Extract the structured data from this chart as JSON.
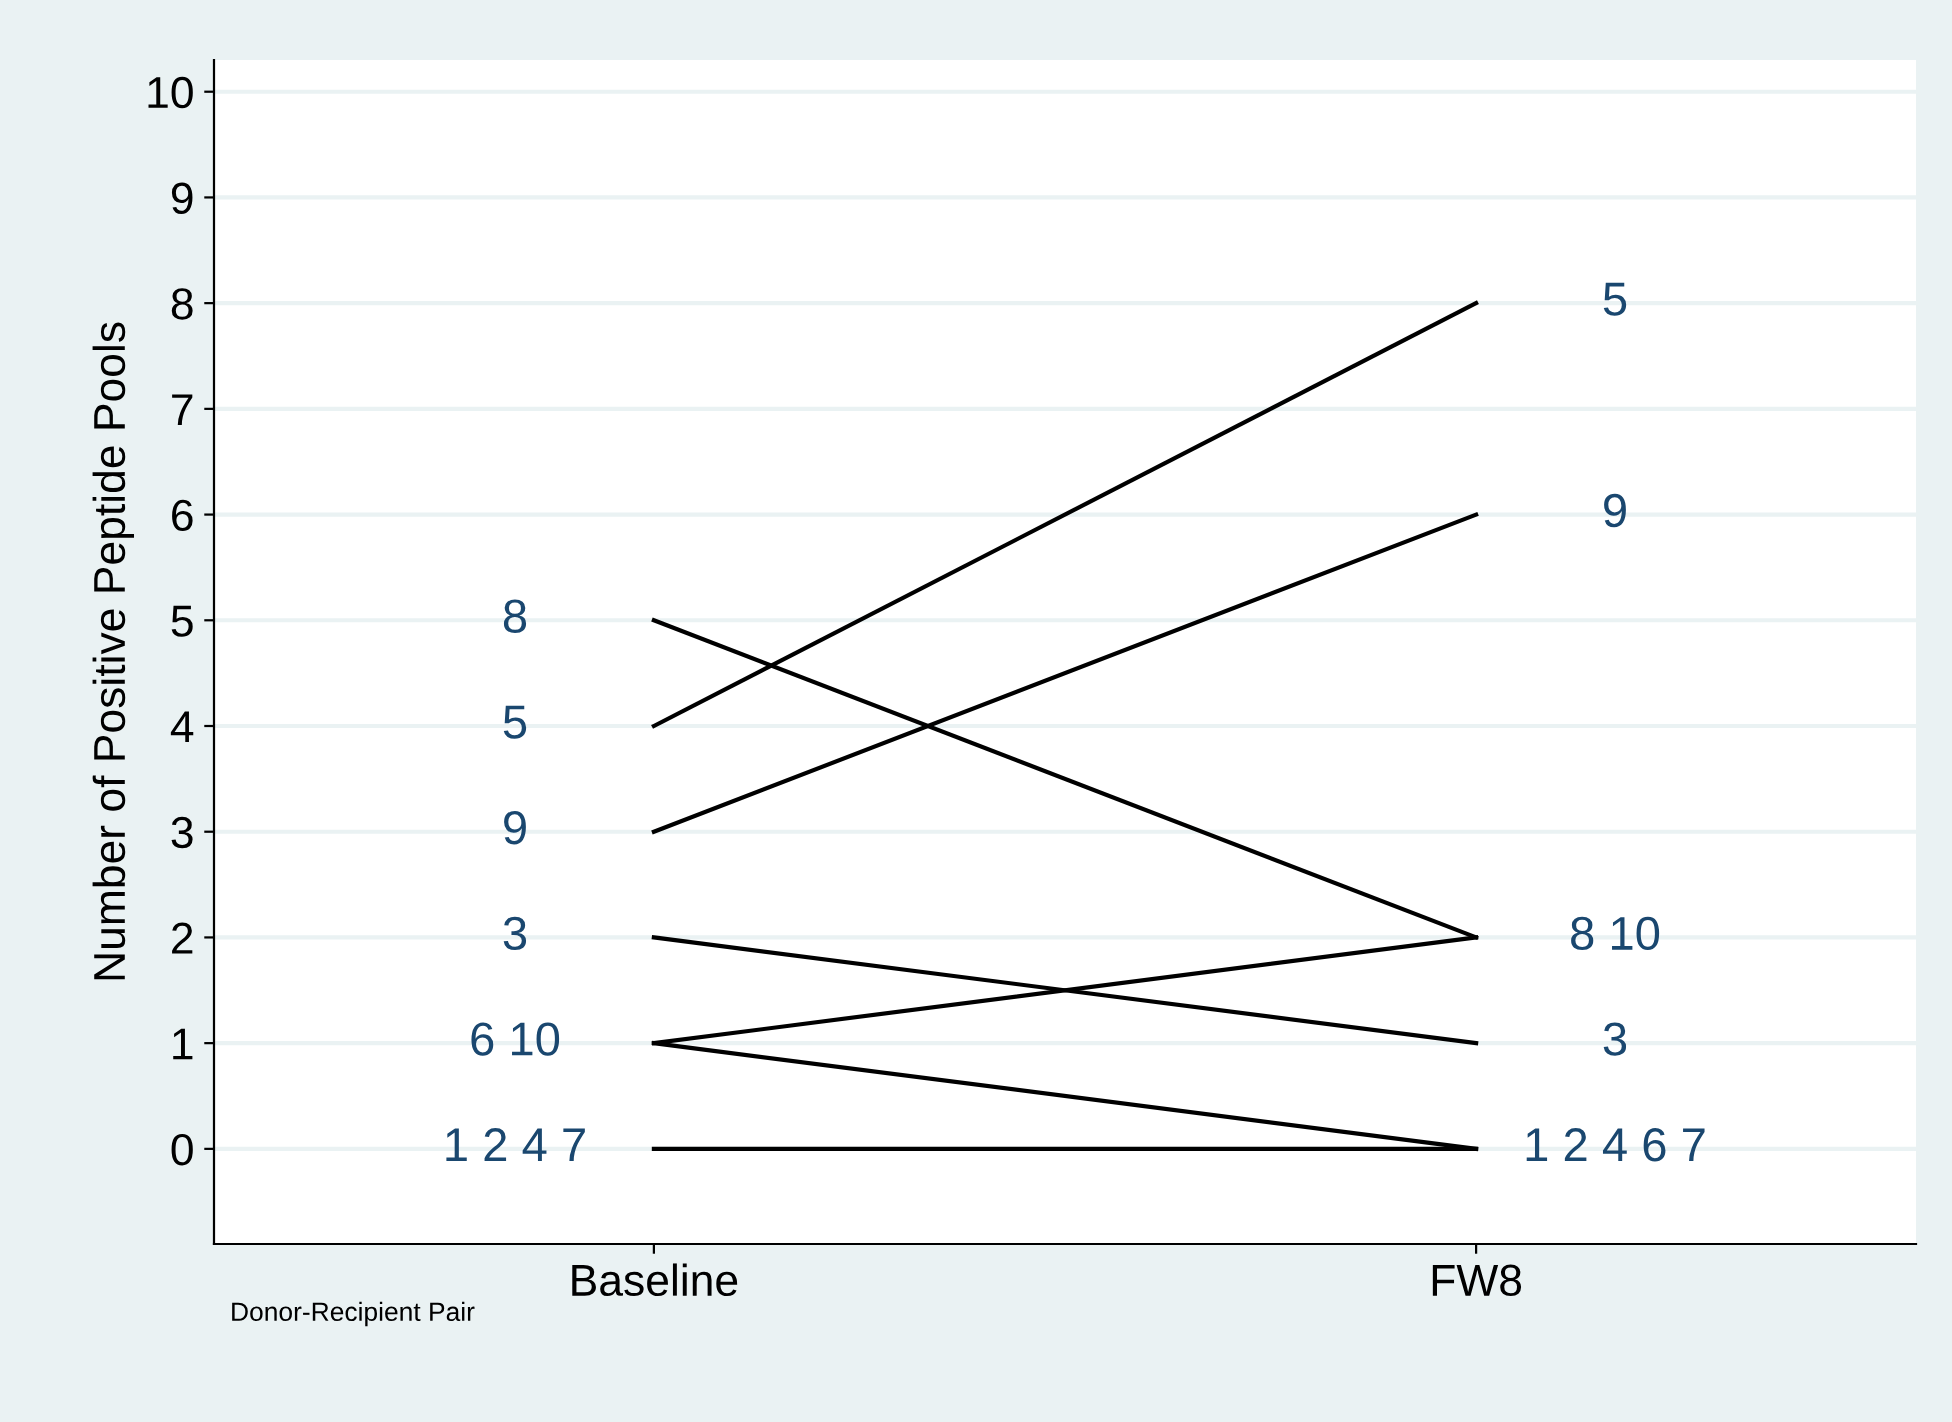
{
  "chart_data": {
    "type": "line",
    "ylabel": "Number of Positive Peptide Pools",
    "categories": [
      "Baseline",
      "FW8"
    ],
    "series": [
      {
        "color": "#000000",
        "values": [
          0,
          0
        ]
      },
      {
        "color": "#000000",
        "values": [
          2,
          1
        ]
      },
      {
        "color": "#000000",
        "values": [
          4,
          8
        ]
      },
      {
        "color": "#000000",
        "values": [
          1,
          0
        ]
      },
      {
        "color": "#000000",
        "values": [
          5,
          2
        ]
      },
      {
        "color": "#000000",
        "values": [
          3,
          6
        ]
      },
      {
        "color": "#000000",
        "values": [
          1,
          2
        ]
      }
    ],
    "ylim": [
      -0.9,
      10.3
    ],
    "yticks": [
      0,
      1,
      2,
      3,
      4,
      5,
      6,
      7,
      8,
      9,
      10
    ],
    "grid": "y",
    "legend": false,
    "marker": "none",
    "line_style": "solid",
    "annotations": [
      {
        "text": "8",
        "x": "Baseline",
        "y": 5
      },
      {
        "text": "5",
        "x": "Baseline",
        "y": 4
      },
      {
        "text": "9",
        "x": "Baseline",
        "y": 3
      },
      {
        "text": "3",
        "x": "Baseline",
        "y": 2
      },
      {
        "text": "6 10",
        "x": "Baseline",
        "y": 1
      },
      {
        "text": "1 2 4 7",
        "x": "Baseline",
        "y": 0
      },
      {
        "text": "5",
        "x": "FW8",
        "y": 8
      },
      {
        "text": "9",
        "x": "FW8",
        "y": 6
      },
      {
        "text": "8 10",
        "x": "FW8",
        "y": 2
      },
      {
        "text": "3",
        "x": "FW8",
        "y": 1
      },
      {
        "text": "1 2 4 6 7",
        "x": "FW8",
        "y": 0
      },
      "Donor-Recipient Pair"
    ]
  }
}
